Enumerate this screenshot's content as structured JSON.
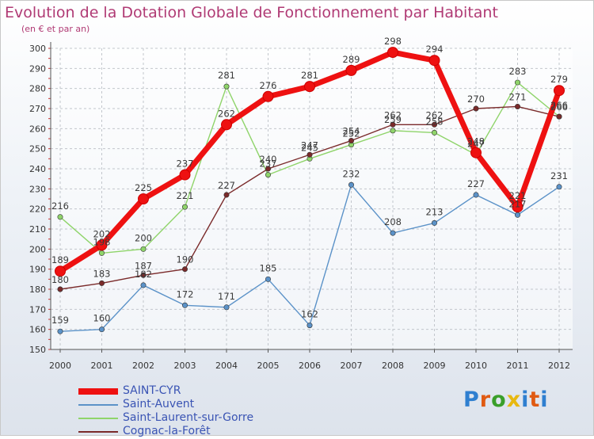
{
  "title": "Evolution de la Dotation Globale de Fonctionnement par Habitant",
  "subtitle": "(en € et par an)",
  "brand": "Proxiti",
  "chart_data": {
    "type": "line",
    "title": "Evolution de la Dotation Globale de Fonctionnement par Habitant",
    "subtitle": "(en € et par an)",
    "xlabel": "",
    "ylabel": "",
    "ylim": [
      150,
      300
    ],
    "yticks": [
      150,
      160,
      170,
      180,
      190,
      200,
      210,
      220,
      230,
      240,
      250,
      260,
      270,
      280,
      290,
      300
    ],
    "grid": true,
    "legend": "bottom-left",
    "categories": [
      "2000",
      "2001",
      "2002",
      "2003",
      "2004",
      "2005",
      "2006",
      "2007",
      "2008",
      "2009",
      "2010",
      "2011",
      "2012"
    ],
    "series": [
      {
        "name": "SAINT-CYR",
        "color": "#ee1111",
        "values": [
          189,
          202,
          225,
          237,
          262,
          276,
          281,
          289,
          298,
          294,
          248,
          221,
          279
        ]
      },
      {
        "name": "Saint-Auvent",
        "color": "#5b92c8",
        "values": [
          159,
          160,
          182,
          172,
          171,
          185,
          162,
          232,
          208,
          213,
          227,
          217,
          231
        ]
      },
      {
        "name": "Saint-Laurent-sur-Gorre",
        "color": "#8fd46a",
        "values": [
          216,
          198,
          200,
          221,
          281,
          237,
          245,
          252,
          259,
          258,
          247,
          283,
          266
        ]
      },
      {
        "name": "Cognac-la-Forêt",
        "color": "#7a2a2a",
        "values": [
          180,
          183,
          187,
          190,
          227,
          240,
          247,
          254,
          262,
          262,
          270,
          271,
          266
        ]
      }
    ]
  }
}
